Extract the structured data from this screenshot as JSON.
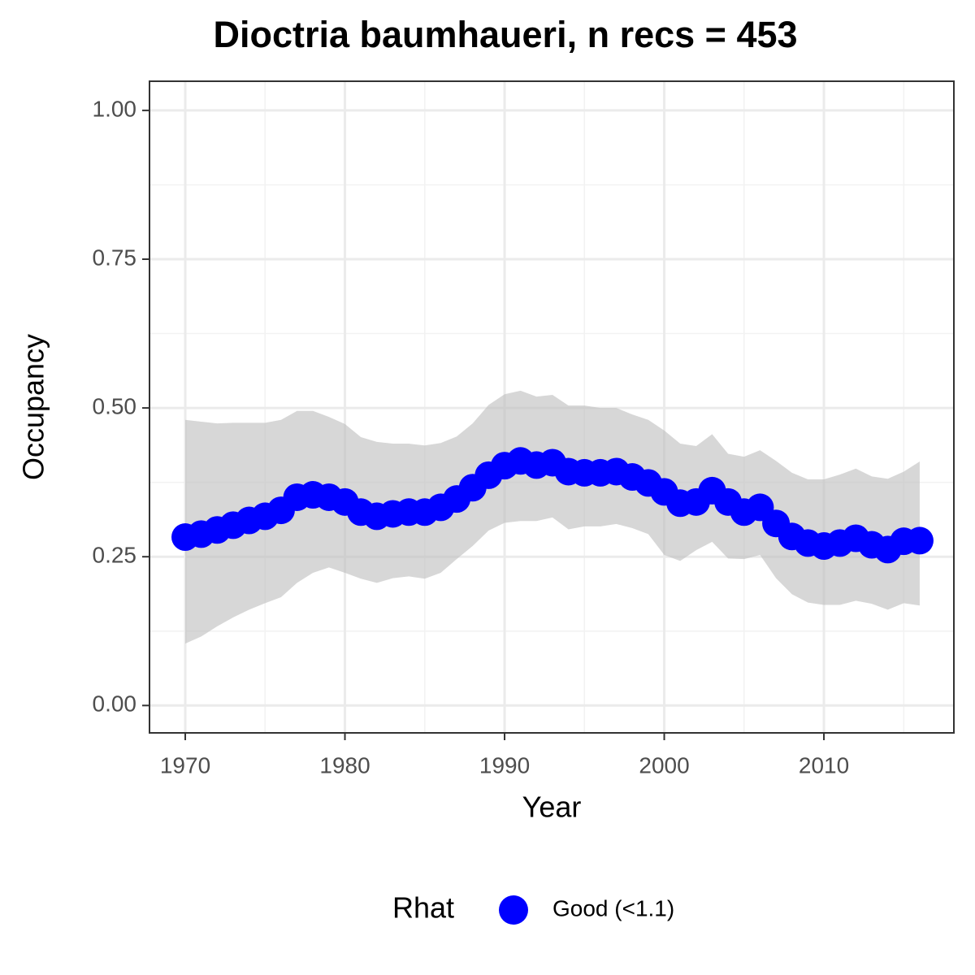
{
  "chart_data": {
    "type": "line",
    "title": "Dioctria baumhaueri, n recs = 453",
    "x_label": "Year",
    "y_label": "Occupancy",
    "x": [
      1970,
      1971,
      1972,
      1973,
      1974,
      1975,
      1976,
      1977,
      1978,
      1979,
      1980,
      1981,
      1982,
      1983,
      1984,
      1985,
      1986,
      1987,
      1988,
      1989,
      1990,
      1991,
      1992,
      1993,
      1994,
      1995,
      1996,
      1997,
      1998,
      1999,
      2000,
      2001,
      2002,
      2003,
      2004,
      2005,
      2006,
      2007,
      2008,
      2009,
      2010,
      2011,
      2012,
      2013,
      2014,
      2015,
      2016
    ],
    "series": [
      {
        "name": "Good (<1.1)",
        "color": "#0000ff",
        "values": [
          0.283,
          0.288,
          0.295,
          0.303,
          0.311,
          0.318,
          0.328,
          0.35,
          0.354,
          0.35,
          0.342,
          0.325,
          0.318,
          0.322,
          0.325,
          0.325,
          0.333,
          0.347,
          0.366,
          0.387,
          0.403,
          0.411,
          0.404,
          0.408,
          0.393,
          0.391,
          0.391,
          0.393,
          0.384,
          0.374,
          0.359,
          0.34,
          0.342,
          0.361,
          0.342,
          0.325,
          0.333,
          0.306,
          0.284,
          0.273,
          0.268,
          0.273,
          0.281,
          0.27,
          0.262,
          0.276,
          0.277
        ],
        "lower": [
          0.104,
          0.116,
          0.133,
          0.148,
          0.161,
          0.172,
          0.182,
          0.206,
          0.223,
          0.232,
          0.223,
          0.213,
          0.206,
          0.214,
          0.217,
          0.213,
          0.223,
          0.246,
          0.268,
          0.294,
          0.307,
          0.31,
          0.31,
          0.316,
          0.296,
          0.301,
          0.301,
          0.305,
          0.298,
          0.288,
          0.253,
          0.243,
          0.261,
          0.275,
          0.247,
          0.246,
          0.253,
          0.214,
          0.187,
          0.173,
          0.169,
          0.169,
          0.176,
          0.171,
          0.161,
          0.172,
          0.168
        ],
        "upper": [
          0.48,
          0.477,
          0.474,
          0.475,
          0.475,
          0.475,
          0.48,
          0.495,
          0.495,
          0.485,
          0.473,
          0.451,
          0.443,
          0.44,
          0.44,
          0.437,
          0.441,
          0.452,
          0.474,
          0.505,
          0.523,
          0.529,
          0.519,
          0.522,
          0.504,
          0.504,
          0.5,
          0.5,
          0.489,
          0.48,
          0.462,
          0.44,
          0.436,
          0.456,
          0.423,
          0.418,
          0.429,
          0.411,
          0.391,
          0.38,
          0.38,
          0.388,
          0.398,
          0.385,
          0.381,
          0.393,
          0.41
        ]
      }
    ],
    "band_color": "#bdbdbd",
    "xlim": [
      1967.76,
      2018.14
    ],
    "ylim": [
      -0.046,
      1.049
    ],
    "xticks": [
      1970,
      1980,
      1990,
      2000,
      2010
    ],
    "yticks": [
      {
        "value": 0,
        "label": "0.00"
      },
      {
        "value": 0.25,
        "label": "0.25"
      },
      {
        "value": 0.5,
        "label": "0.50"
      },
      {
        "value": 0.75,
        "label": "0.75"
      },
      {
        "value": 1,
        "label": "1.00"
      }
    ],
    "xminorticks": [
      1975,
      1985,
      1995,
      2005,
      2015
    ],
    "yminorticks": [
      0.125,
      0.375,
      0.625,
      0.875
    ],
    "grid": true,
    "legend_title": "Rhat",
    "legend": "bottom"
  }
}
